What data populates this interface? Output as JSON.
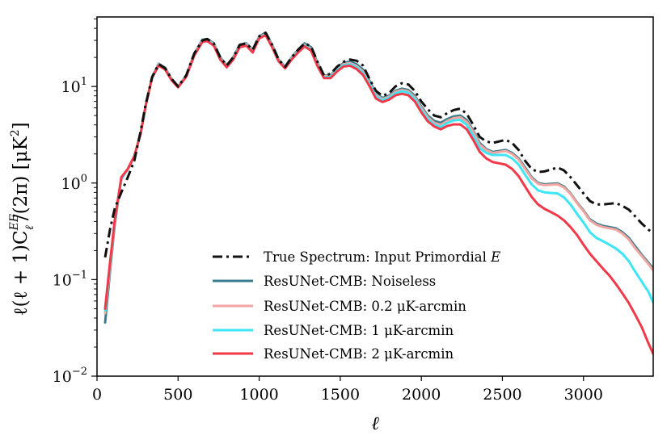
{
  "chart_data": {
    "type": "line",
    "title": "",
    "xlabel": "ℓ",
    "ylabel": "ℓ(ℓ + 1)C",
    "ylabel_super": "EE",
    "ylabel_sub": "ℓ",
    "ylabel_tail": "/(2π)  [μK",
    "ylabel_unit_power": "2",
    "ylabel_close": "]",
    "xlim": [
      0,
      3430
    ],
    "ylim_log10": [
      -2,
      1.72
    ],
    "yscale": "log",
    "x_ticks": [
      0,
      500,
      1000,
      1500,
      2000,
      2500,
      3000
    ],
    "x_tick_labels": [
      "0",
      "500",
      "1000",
      "1500",
      "2000",
      "2500",
      "3000"
    ],
    "y_ticks_log10": [
      -2,
      -1,
      0,
      1
    ],
    "y_tick_labels": [
      {
        "base": "10",
        "exp": "−2"
      },
      {
        "base": "10",
        "exp": "−1"
      },
      {
        "base": "10",
        "exp": "0"
      },
      {
        "base": "10",
        "exp": "1"
      }
    ],
    "legend_position": "lower-center",
    "series": [
      {
        "name": "True Spectrum: Input Primordial E",
        "label_main": "True Spectrum: Input Primordial",
        "label_italic": "E",
        "color": "#111111",
        "style": "dashdot",
        "width": 3,
        "x": [
          50,
          80,
          110,
          150,
          190,
          230,
          270,
          300,
          340,
          380,
          420,
          460,
          500,
          550,
          600,
          650,
          680,
          720,
          760,
          800,
          840,
          880,
          920,
          960,
          1000,
          1040,
          1080,
          1120,
          1160,
          1200,
          1240,
          1280,
          1320,
          1360,
          1400,
          1440,
          1480,
          1520,
          1560,
          1600,
          1640,
          1680,
          1720,
          1760,
          1800,
          1840,
          1880,
          1920,
          1960,
          2000,
          2040,
          2080,
          2120,
          2160,
          2200,
          2240,
          2280,
          2320,
          2360,
          2400,
          2440,
          2480,
          2520,
          2560,
          2600,
          2640,
          2680,
          2720,
          2760,
          2800,
          2840,
          2880,
          2920,
          2960,
          3000,
          3040,
          3080,
          3120,
          3160,
          3200,
          3240,
          3280,
          3320,
          3360,
          3400,
          3430
        ],
        "y": [
          0.17,
          0.33,
          0.55,
          0.8,
          1.15,
          1.7,
          3.5,
          6.5,
          12.5,
          17.0,
          15.5,
          12.0,
          10.0,
          13.0,
          22.0,
          30.0,
          31.0,
          28.0,
          20.0,
          16.5,
          20.0,
          27.0,
          28.0,
          24.0,
          33.0,
          36.0,
          27.0,
          19.0,
          16.0,
          20.0,
          24.0,
          28.0,
          26.0,
          18.0,
          13.0,
          13.5,
          16.0,
          18.0,
          19.0,
          18.5,
          16.5,
          12.0,
          9.0,
          8.0,
          8.5,
          10.0,
          10.8,
          10.5,
          9.0,
          7.0,
          5.8,
          5.0,
          4.8,
          5.3,
          5.7,
          5.9,
          5.2,
          4.0,
          3.0,
          2.7,
          2.6,
          2.7,
          2.8,
          2.6,
          2.2,
          1.7,
          1.4,
          1.3,
          1.32,
          1.38,
          1.45,
          1.35,
          1.15,
          0.95,
          0.78,
          0.65,
          0.6,
          0.6,
          0.61,
          0.62,
          0.58,
          0.53,
          0.45,
          0.38,
          0.33,
          0.3
        ]
      },
      {
        "name": "ResUNet-CMB: Noiseless",
        "color": "#3a7d8c",
        "style": "solid",
        "width": 3,
        "x": [
          50,
          80,
          110,
          150,
          190,
          230,
          270,
          300,
          340,
          380,
          420,
          460,
          500,
          550,
          600,
          650,
          680,
          720,
          760,
          800,
          840,
          880,
          920,
          960,
          1000,
          1040,
          1080,
          1120,
          1160,
          1200,
          1240,
          1280,
          1320,
          1360,
          1400,
          1440,
          1480,
          1520,
          1560,
          1600,
          1640,
          1680,
          1720,
          1760,
          1800,
          1840,
          1880,
          1920,
          1960,
          2000,
          2040,
          2080,
          2120,
          2160,
          2200,
          2240,
          2280,
          2320,
          2360,
          2400,
          2440,
          2480,
          2520,
          2560,
          2600,
          2640,
          2680,
          2720,
          2760,
          2800,
          2840,
          2880,
          2920,
          2960,
          3000,
          3040,
          3080,
          3120,
          3160,
          3200,
          3240,
          3280,
          3320,
          3360,
          3400,
          3430
        ],
        "y": [
          0.036,
          0.12,
          0.38,
          1.1,
          1.4,
          1.9,
          3.3,
          6.3,
          12.6,
          17.2,
          15.6,
          12.0,
          10.0,
          13.0,
          22.0,
          30.5,
          31.0,
          28.0,
          20.0,
          16.5,
          20.0,
          27.0,
          28.0,
          24.0,
          33.0,
          36.0,
          27.0,
          19.0,
          16.0,
          20.0,
          24.0,
          28.0,
          25.5,
          17.5,
          13.0,
          13.0,
          15.5,
          17.5,
          18.2,
          17.0,
          15.0,
          11.5,
          8.5,
          7.6,
          8.0,
          9.0,
          9.5,
          9.2,
          8.0,
          6.2,
          5.0,
          4.4,
          4.2,
          4.6,
          4.9,
          5.0,
          4.5,
          3.5,
          2.6,
          2.25,
          2.1,
          2.15,
          2.2,
          2.05,
          1.8,
          1.45,
          1.15,
          1.0,
          0.97,
          0.98,
          0.99,
          0.92,
          0.78,
          0.63,
          0.52,
          0.42,
          0.38,
          0.36,
          0.35,
          0.34,
          0.31,
          0.27,
          0.22,
          0.18,
          0.15,
          0.13
        ]
      },
      {
        "name": "ResUNet-CMB: 0.2 μK-arcmin",
        "label_main": "ResUNet-CMB: 0.2",
        "label_tail": "μK-arcmin",
        "color": "#f2a6a1",
        "style": "solid",
        "width": 3,
        "x": [
          50,
          80,
          110,
          150,
          190,
          230,
          270,
          300,
          340,
          380,
          420,
          460,
          500,
          550,
          600,
          650,
          680,
          720,
          760,
          800,
          840,
          880,
          920,
          960,
          1000,
          1040,
          1080,
          1120,
          1160,
          1200,
          1240,
          1280,
          1320,
          1360,
          1400,
          1440,
          1480,
          1520,
          1560,
          1600,
          1640,
          1680,
          1720,
          1760,
          1800,
          1840,
          1880,
          1920,
          1960,
          2000,
          2040,
          2080,
          2120,
          2160,
          2200,
          2240,
          2280,
          2320,
          2360,
          2400,
          2440,
          2480,
          2520,
          2560,
          2600,
          2640,
          2680,
          2720,
          2760,
          2800,
          2840,
          2880,
          2920,
          2960,
          3000,
          3040,
          3080,
          3120,
          3160,
          3200,
          3240,
          3280,
          3320,
          3360,
          3400,
          3430
        ],
        "y": [
          0.045,
          0.13,
          0.4,
          1.1,
          1.4,
          1.9,
          3.3,
          6.3,
          12.6,
          17.0,
          15.5,
          12.0,
          10.0,
          13.0,
          22.0,
          30.0,
          30.5,
          27.5,
          19.5,
          16.3,
          19.5,
          26.5,
          27.5,
          23.5,
          32.5,
          35.0,
          26.5,
          18.7,
          15.8,
          19.7,
          23.5,
          27.0,
          24.5,
          17.0,
          12.8,
          12.8,
          15.0,
          17.0,
          17.5,
          16.3,
          14.3,
          11.0,
          8.2,
          7.4,
          7.8,
          8.8,
          9.2,
          8.9,
          7.7,
          6.0,
          4.8,
          4.2,
          4.0,
          4.4,
          4.7,
          4.8,
          4.3,
          3.4,
          2.5,
          2.2,
          2.05,
          2.1,
          2.15,
          2.0,
          1.75,
          1.4,
          1.12,
          0.98,
          0.95,
          0.96,
          0.97,
          0.9,
          0.77,
          0.62,
          0.51,
          0.41,
          0.37,
          0.35,
          0.34,
          0.33,
          0.3,
          0.26,
          0.21,
          0.175,
          0.145,
          0.125
        ]
      },
      {
        "name": "ResUNet-CMB: 1 μK-arcmin",
        "label_main": "ResUNet-CMB: 1",
        "label_tail": "μK-arcmin",
        "color": "#3ee6f5",
        "style": "solid",
        "width": 3,
        "x": [
          50,
          80,
          110,
          150,
          190,
          230,
          270,
          300,
          340,
          380,
          420,
          460,
          500,
          550,
          600,
          650,
          680,
          720,
          760,
          800,
          840,
          880,
          920,
          960,
          1000,
          1040,
          1080,
          1120,
          1160,
          1200,
          1240,
          1280,
          1320,
          1360,
          1400,
          1440,
          1480,
          1520,
          1560,
          1600,
          1640,
          1680,
          1720,
          1760,
          1800,
          1840,
          1880,
          1920,
          1960,
          2000,
          2040,
          2080,
          2120,
          2160,
          2200,
          2240,
          2280,
          2320,
          2360,
          2400,
          2440,
          2480,
          2520,
          2560,
          2600,
          2640,
          2680,
          2720,
          2760,
          2800,
          2840,
          2880,
          2920,
          2960,
          3000,
          3040,
          3080,
          3120,
          3160,
          3200,
          3240,
          3280,
          3320,
          3360,
          3400,
          3430
        ],
        "y": [
          0.048,
          0.14,
          0.41,
          1.1,
          1.4,
          1.9,
          3.3,
          6.3,
          12.5,
          16.8,
          15.3,
          11.8,
          9.9,
          12.8,
          21.5,
          29.5,
          30.0,
          27.0,
          19.2,
          16.0,
          19.2,
          26.0,
          27.0,
          23.0,
          32.0,
          34.5,
          26.0,
          18.5,
          15.6,
          19.4,
          23.0,
          26.5,
          24.0,
          16.6,
          12.5,
          12.5,
          14.7,
          16.6,
          17.0,
          15.8,
          13.8,
          10.6,
          7.9,
          7.2,
          7.6,
          8.5,
          8.9,
          8.6,
          7.4,
          5.7,
          4.6,
          4.0,
          3.8,
          4.2,
          4.45,
          4.5,
          4.0,
          3.1,
          2.3,
          2.05,
          1.95,
          1.95,
          1.95,
          1.8,
          1.55,
          1.22,
          0.97,
          0.84,
          0.8,
          0.79,
          0.78,
          0.71,
          0.6,
          0.48,
          0.39,
          0.31,
          0.27,
          0.25,
          0.23,
          0.21,
          0.185,
          0.155,
          0.12,
          0.095,
          0.075,
          0.058
        ]
      },
      {
        "name": "ResUNet-CMB: 2 μK-arcmin",
        "label_main": "ResUNet-CMB: 2",
        "label_tail": "μK-arcmin",
        "color": "#f03a4a",
        "style": "solid",
        "width": 3,
        "x": [
          50,
          80,
          110,
          150,
          190,
          230,
          270,
          300,
          340,
          380,
          420,
          460,
          500,
          550,
          600,
          650,
          680,
          720,
          760,
          800,
          840,
          880,
          920,
          960,
          1000,
          1040,
          1080,
          1120,
          1160,
          1200,
          1240,
          1280,
          1320,
          1360,
          1400,
          1440,
          1480,
          1520,
          1560,
          1600,
          1640,
          1680,
          1720,
          1760,
          1800,
          1840,
          1880,
          1920,
          1960,
          2000,
          2040,
          2080,
          2120,
          2160,
          2200,
          2240,
          2280,
          2320,
          2360,
          2400,
          2440,
          2480,
          2520,
          2560,
          2600,
          2640,
          2680,
          2720,
          2760,
          2800,
          2840,
          2880,
          2920,
          2960,
          3000,
          3040,
          3080,
          3120,
          3160,
          3200,
          3240,
          3280,
          3320,
          3360,
          3400,
          3430
        ],
        "y": [
          0.05,
          0.15,
          0.42,
          1.15,
          1.4,
          1.9,
          3.3,
          6.3,
          12.4,
          16.5,
          15.0,
          11.6,
          9.8,
          12.6,
          21.0,
          29.0,
          29.5,
          26.5,
          19.0,
          15.8,
          19.0,
          25.5,
          26.5,
          22.5,
          31.5,
          34.0,
          25.5,
          18.2,
          15.4,
          19.0,
          22.5,
          26.0,
          23.5,
          16.2,
          12.2,
          12.2,
          14.3,
          16.1,
          16.4,
          15.2,
          13.2,
          10.1,
          7.5,
          6.9,
          7.3,
          8.1,
          8.4,
          8.1,
          7.0,
          5.4,
          4.35,
          3.85,
          3.6,
          3.9,
          4.05,
          4.05,
          3.6,
          2.8,
          2.1,
          1.8,
          1.65,
          1.6,
          1.55,
          1.4,
          1.18,
          0.92,
          0.72,
          0.6,
          0.54,
          0.5,
          0.46,
          0.41,
          0.35,
          0.29,
          0.23,
          0.185,
          0.155,
          0.13,
          0.11,
          0.09,
          0.072,
          0.057,
          0.043,
          0.032,
          0.022,
          0.017
        ]
      }
    ]
  }
}
